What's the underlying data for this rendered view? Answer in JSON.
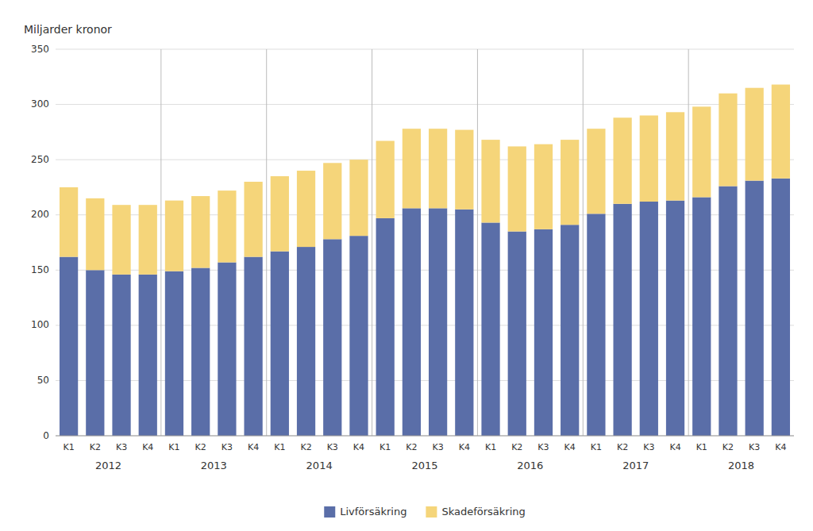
{
  "chart_data": {
    "type": "bar",
    "stacked": true,
    "ylabel": "Miljarder kronor",
    "categories": [
      "K1",
      "K2",
      "K3",
      "K4",
      "K1",
      "K2",
      "K3",
      "K4",
      "K1",
      "K2",
      "K3",
      "K4",
      "K1",
      "K2",
      "K3",
      "K4",
      "K1",
      "K2",
      "K3",
      "K4",
      "K1",
      "K2",
      "K3",
      "K4",
      "K1",
      "K2",
      "K3",
      "K4"
    ],
    "x_groups": [
      "2012",
      "2013",
      "2014",
      "2015",
      "2016",
      "2017",
      "2018"
    ],
    "series": [
      {
        "name": "Livförsäkring",
        "color": "#5a6ea8",
        "values": [
          162,
          150,
          146,
          146,
          149,
          152,
          157,
          162,
          167,
          171,
          178,
          181,
          197,
          206,
          206,
          205,
          193,
          185,
          187,
          191,
          201,
          210,
          212,
          213,
          216,
          226,
          231,
          233
        ]
      },
      {
        "name": "Skadeförsäkring",
        "color": "#f5d57a",
        "values": [
          63,
          65,
          63,
          63,
          64,
          65,
          65,
          68,
          68,
          69,
          69,
          69,
          70,
          72,
          72,
          72,
          75,
          77,
          77,
          77,
          77,
          78,
          78,
          80,
          82,
          84,
          84,
          85
        ]
      }
    ],
    "ylim": [
      0,
      350
    ],
    "yticks": [
      0,
      50,
      100,
      150,
      200,
      250,
      300,
      350
    ],
    "grid": true,
    "legend": "bottom"
  }
}
